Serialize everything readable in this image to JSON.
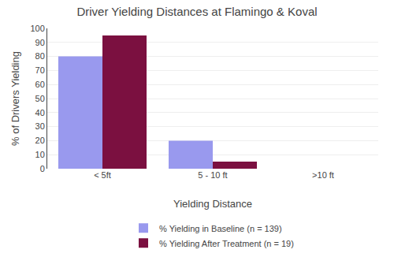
{
  "chart_data": {
    "type": "bar",
    "title": "Driver Yielding Distances at Flamingo & Koval",
    "xlabel": "Yielding Distance",
    "ylabel": "% of Drivers Yielding",
    "categories": [
      "< 5ft",
      "5 - 10 ft",
      ">10 ft"
    ],
    "series": [
      {
        "name": "% Yielding in Baseline (n = 139)",
        "color": "#9999ee",
        "values": [
          80,
          20,
          0
        ]
      },
      {
        "name": "% Yielding After Treatment (n = 19)",
        "color": "#7b1040",
        "values": [
          95,
          5,
          0
        ]
      }
    ],
    "ylim": [
      0,
      100
    ],
    "yticks": [
      0,
      10,
      20,
      30,
      40,
      50,
      60,
      70,
      80,
      90,
      100
    ],
    "grid": true,
    "legend": "bottom"
  }
}
